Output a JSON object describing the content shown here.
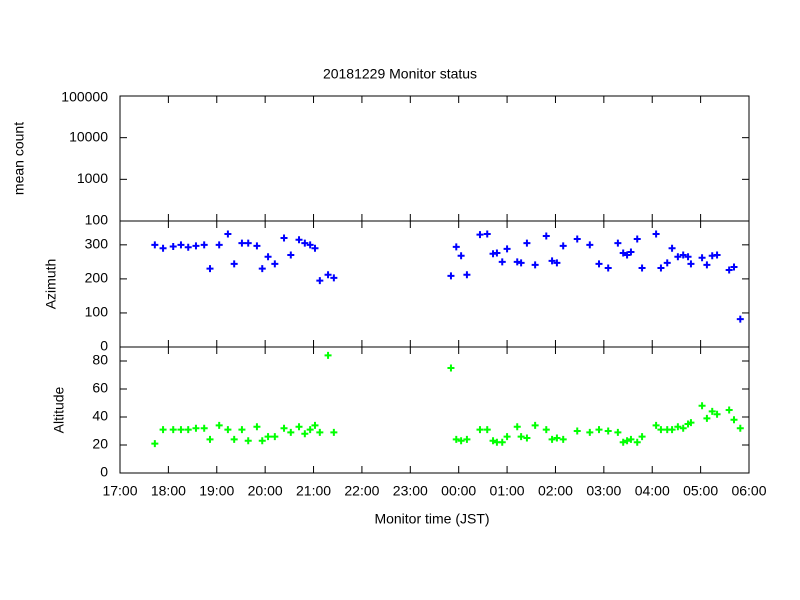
{
  "chart_data": [
    {
      "type": "scatter",
      "title": "20181229 Monitor status",
      "ylabel": "mean count",
      "ylim": [
        100,
        100000
      ],
      "yticks": [
        100,
        1000,
        10000,
        100000
      ],
      "log_scale": true
    },
    {
      "type": "scatter",
      "ylabel": "Azimuth",
      "color": "#0000ff",
      "x": [
        17.72,
        17.89,
        18.1,
        18.26,
        18.41,
        18.57,
        18.74,
        18.86,
        19.05,
        19.23,
        19.36,
        19.52,
        19.65,
        19.83,
        19.94,
        20.06,
        20.2,
        20.39,
        20.53,
        20.7,
        20.82,
        20.93,
        21.03,
        21.13,
        21.3,
        21.42,
        23.84,
        23.95,
        24.05,
        24.17,
        24.44,
        24.59,
        24.71,
        24.79,
        24.9,
        25,
        25.21,
        25.29,
        25.41,
        25.58,
        25.81,
        25.93,
        26.03,
        26.16,
        26.45,
        26.71,
        26.9,
        27.09,
        27.29,
        27.4,
        27.48,
        27.56,
        27.69,
        27.79,
        28.08,
        28.18,
        28.31,
        28.41,
        28.53,
        28.64,
        28.74,
        28.8,
        29.03,
        29.13,
        29.24,
        29.34,
        29.59,
        29.69,
        29.82
      ],
      "values": [
        300,
        290,
        295,
        300,
        293,
        297,
        300,
        230,
        300,
        332,
        244,
        305,
        305,
        297,
        230,
        265,
        244,
        320,
        270,
        315,
        305,
        300,
        290,
        195,
        212,
        203,
        209,
        294,
        268,
        212,
        330,
        332,
        274,
        276,
        250,
        288,
        250,
        247,
        305,
        241,
        326,
        253,
        247,
        297,
        317,
        300,
        244,
        232,
        305,
        276,
        270,
        279,
        317,
        232,
        332,
        232,
        247,
        290,
        265,
        270,
        265,
        244,
        262,
        241,
        268,
        270,
        226,
        235,
        82
      ],
      "ylim": [
        0,
        370
      ],
      "yticks": [
        0,
        100,
        200,
        300
      ]
    },
    {
      "type": "scatter",
      "ylabel": "Altitude",
      "xlabel": "Monitor time (JST)",
      "color": "#00ff00",
      "x": [
        17.72,
        17.89,
        18.1,
        18.26,
        18.41,
        18.57,
        18.74,
        18.86,
        19.05,
        19.23,
        19.36,
        19.52,
        19.65,
        19.83,
        19.94,
        20.06,
        20.2,
        20.39,
        20.53,
        20.7,
        20.82,
        20.93,
        21.03,
        21.13,
        21.3,
        21.42,
        23.84,
        23.95,
        24.05,
        24.17,
        24.44,
        24.59,
        24.71,
        24.79,
        24.9,
        25,
        25.21,
        25.29,
        25.41,
        25.58,
        25.81,
        25.93,
        26.03,
        26.16,
        26.45,
        26.71,
        26.9,
        27.09,
        27.29,
        27.4,
        27.48,
        27.56,
        27.69,
        27.79,
        28.08,
        28.18,
        28.31,
        28.41,
        28.53,
        28.64,
        28.74,
        28.8,
        29.03,
        29.13,
        29.24,
        29.34,
        29.59,
        29.69,
        29.82
      ],
      "values": [
        21,
        31,
        31,
        31,
        31,
        32,
        32,
        24,
        34,
        31,
        24,
        31,
        23,
        33,
        23,
        26,
        26,
        32,
        29,
        33,
        28,
        31,
        34,
        29,
        84,
        29,
        75,
        24,
        23,
        24,
        31,
        31,
        23,
        22,
        22,
        26,
        33,
        26,
        25,
        34,
        31,
        24,
        25,
        24,
        30,
        29,
        31,
        30,
        29,
        22,
        23,
        24,
        22,
        26,
        34,
        31,
        31,
        31,
        33,
        32,
        35,
        36,
        48,
        39,
        44,
        42,
        45,
        38,
        32
      ],
      "ylim": [
        0,
        90
      ],
      "yticks": [
        0,
        20,
        40,
        60,
        80
      ],
      "xlim": [
        17,
        30
      ],
      "xticks": [
        {
          "value": 17,
          "label": "17:00"
        },
        {
          "value": 18,
          "label": "18:00"
        },
        {
          "value": 19,
          "label": "19:00"
        },
        {
          "value": 20,
          "label": "20:00"
        },
        {
          "value": 21,
          "label": "21:00"
        },
        {
          "value": 22,
          "label": "22:00"
        },
        {
          "value": 23,
          "label": "23:00"
        },
        {
          "value": 24,
          "label": "00:00"
        },
        {
          "value": 25,
          "label": "01:00"
        },
        {
          "value": 26,
          "label": "02:00"
        },
        {
          "value": 27,
          "label": "03:00"
        },
        {
          "value": 28,
          "label": "04:00"
        },
        {
          "value": 29,
          "label": "05:00"
        },
        {
          "value": 30,
          "label": "06:00"
        }
      ]
    }
  ]
}
